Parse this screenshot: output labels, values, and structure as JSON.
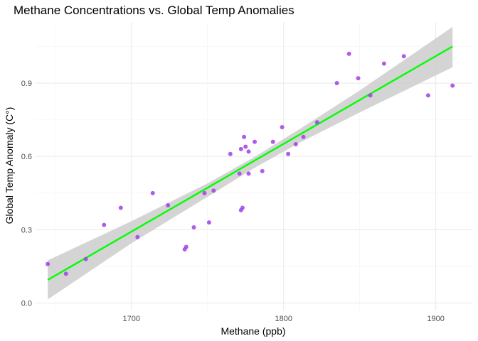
{
  "chart_data": {
    "type": "scatter",
    "title": "Methane Concentrations vs. Global Temp Anomalies",
    "xlabel": "Methane (ppb)",
    "ylabel": "Global Temp Anomaly (C°)",
    "xlim": [
      1637,
      1924
    ],
    "ylim": [
      -0.03,
      1.15
    ],
    "x_ticks": [
      1700,
      1800,
      1900
    ],
    "y_ticks": [
      0.0,
      0.3,
      0.6,
      0.9
    ],
    "x_tick_labels": [
      "1700",
      "1800",
      "1900"
    ],
    "y_tick_labels": [
      "0.0",
      "0.3",
      "0.6",
      "0.9"
    ],
    "grid": true,
    "legend": "none",
    "point_color": "#a040e8",
    "fit_color": "#00ff00",
    "band_color": "#cccccc",
    "points": [
      {
        "x": 1645,
        "y": 0.16
      },
      {
        "x": 1657,
        "y": 0.12
      },
      {
        "x": 1670,
        "y": 0.18
      },
      {
        "x": 1682,
        "y": 0.32
      },
      {
        "x": 1693,
        "y": 0.39
      },
      {
        "x": 1704,
        "y": 0.27
      },
      {
        "x": 1714,
        "y": 0.45
      },
      {
        "x": 1724,
        "y": 0.4
      },
      {
        "x": 1735,
        "y": 0.22
      },
      {
        "x": 1736,
        "y": 0.23
      },
      {
        "x": 1741,
        "y": 0.31
      },
      {
        "x": 1748,
        "y": 0.45
      },
      {
        "x": 1751,
        "y": 0.33
      },
      {
        "x": 1754,
        "y": 0.46
      },
      {
        "x": 1765,
        "y": 0.61
      },
      {
        "x": 1771,
        "y": 0.53
      },
      {
        "x": 1772,
        "y": 0.63
      },
      {
        "x": 1772,
        "y": 0.38
      },
      {
        "x": 1773,
        "y": 0.39
      },
      {
        "x": 1774,
        "y": 0.68
      },
      {
        "x": 1775,
        "y": 0.64
      },
      {
        "x": 1777,
        "y": 0.53
      },
      {
        "x": 1777,
        "y": 0.62
      },
      {
        "x": 1781,
        "y": 0.66
      },
      {
        "x": 1786,
        "y": 0.54
      },
      {
        "x": 1793,
        "y": 0.66
      },
      {
        "x": 1799,
        "y": 0.72
      },
      {
        "x": 1803,
        "y": 0.61
      },
      {
        "x": 1808,
        "y": 0.65
      },
      {
        "x": 1813,
        "y": 0.68
      },
      {
        "x": 1822,
        "y": 0.74
      },
      {
        "x": 1835,
        "y": 0.9
      },
      {
        "x": 1843,
        "y": 1.02
      },
      {
        "x": 1849,
        "y": 0.92
      },
      {
        "x": 1857,
        "y": 0.85
      },
      {
        "x": 1866,
        "y": 0.98
      },
      {
        "x": 1879,
        "y": 1.01
      },
      {
        "x": 1895,
        "y": 0.85
      },
      {
        "x": 1911,
        "y": 0.89
      }
    ],
    "fit_line": [
      {
        "x": 1645,
        "y": 0.095
      },
      {
        "x": 1911,
        "y": 1.05
      }
    ],
    "confidence_band": [
      {
        "x": 1645,
        "lower": 0.015,
        "upper": 0.175
      },
      {
        "x": 1700,
        "lower": 0.245,
        "upper": 0.335
      },
      {
        "x": 1750,
        "lower": 0.435,
        "upper": 0.49
      },
      {
        "x": 1780,
        "lower": 0.55,
        "upper": 0.595
      },
      {
        "x": 1810,
        "lower": 0.655,
        "upper": 0.71
      },
      {
        "x": 1850,
        "lower": 0.78,
        "upper": 0.87
      },
      {
        "x": 1911,
        "lower": 0.965,
        "upper": 1.13
      }
    ]
  }
}
